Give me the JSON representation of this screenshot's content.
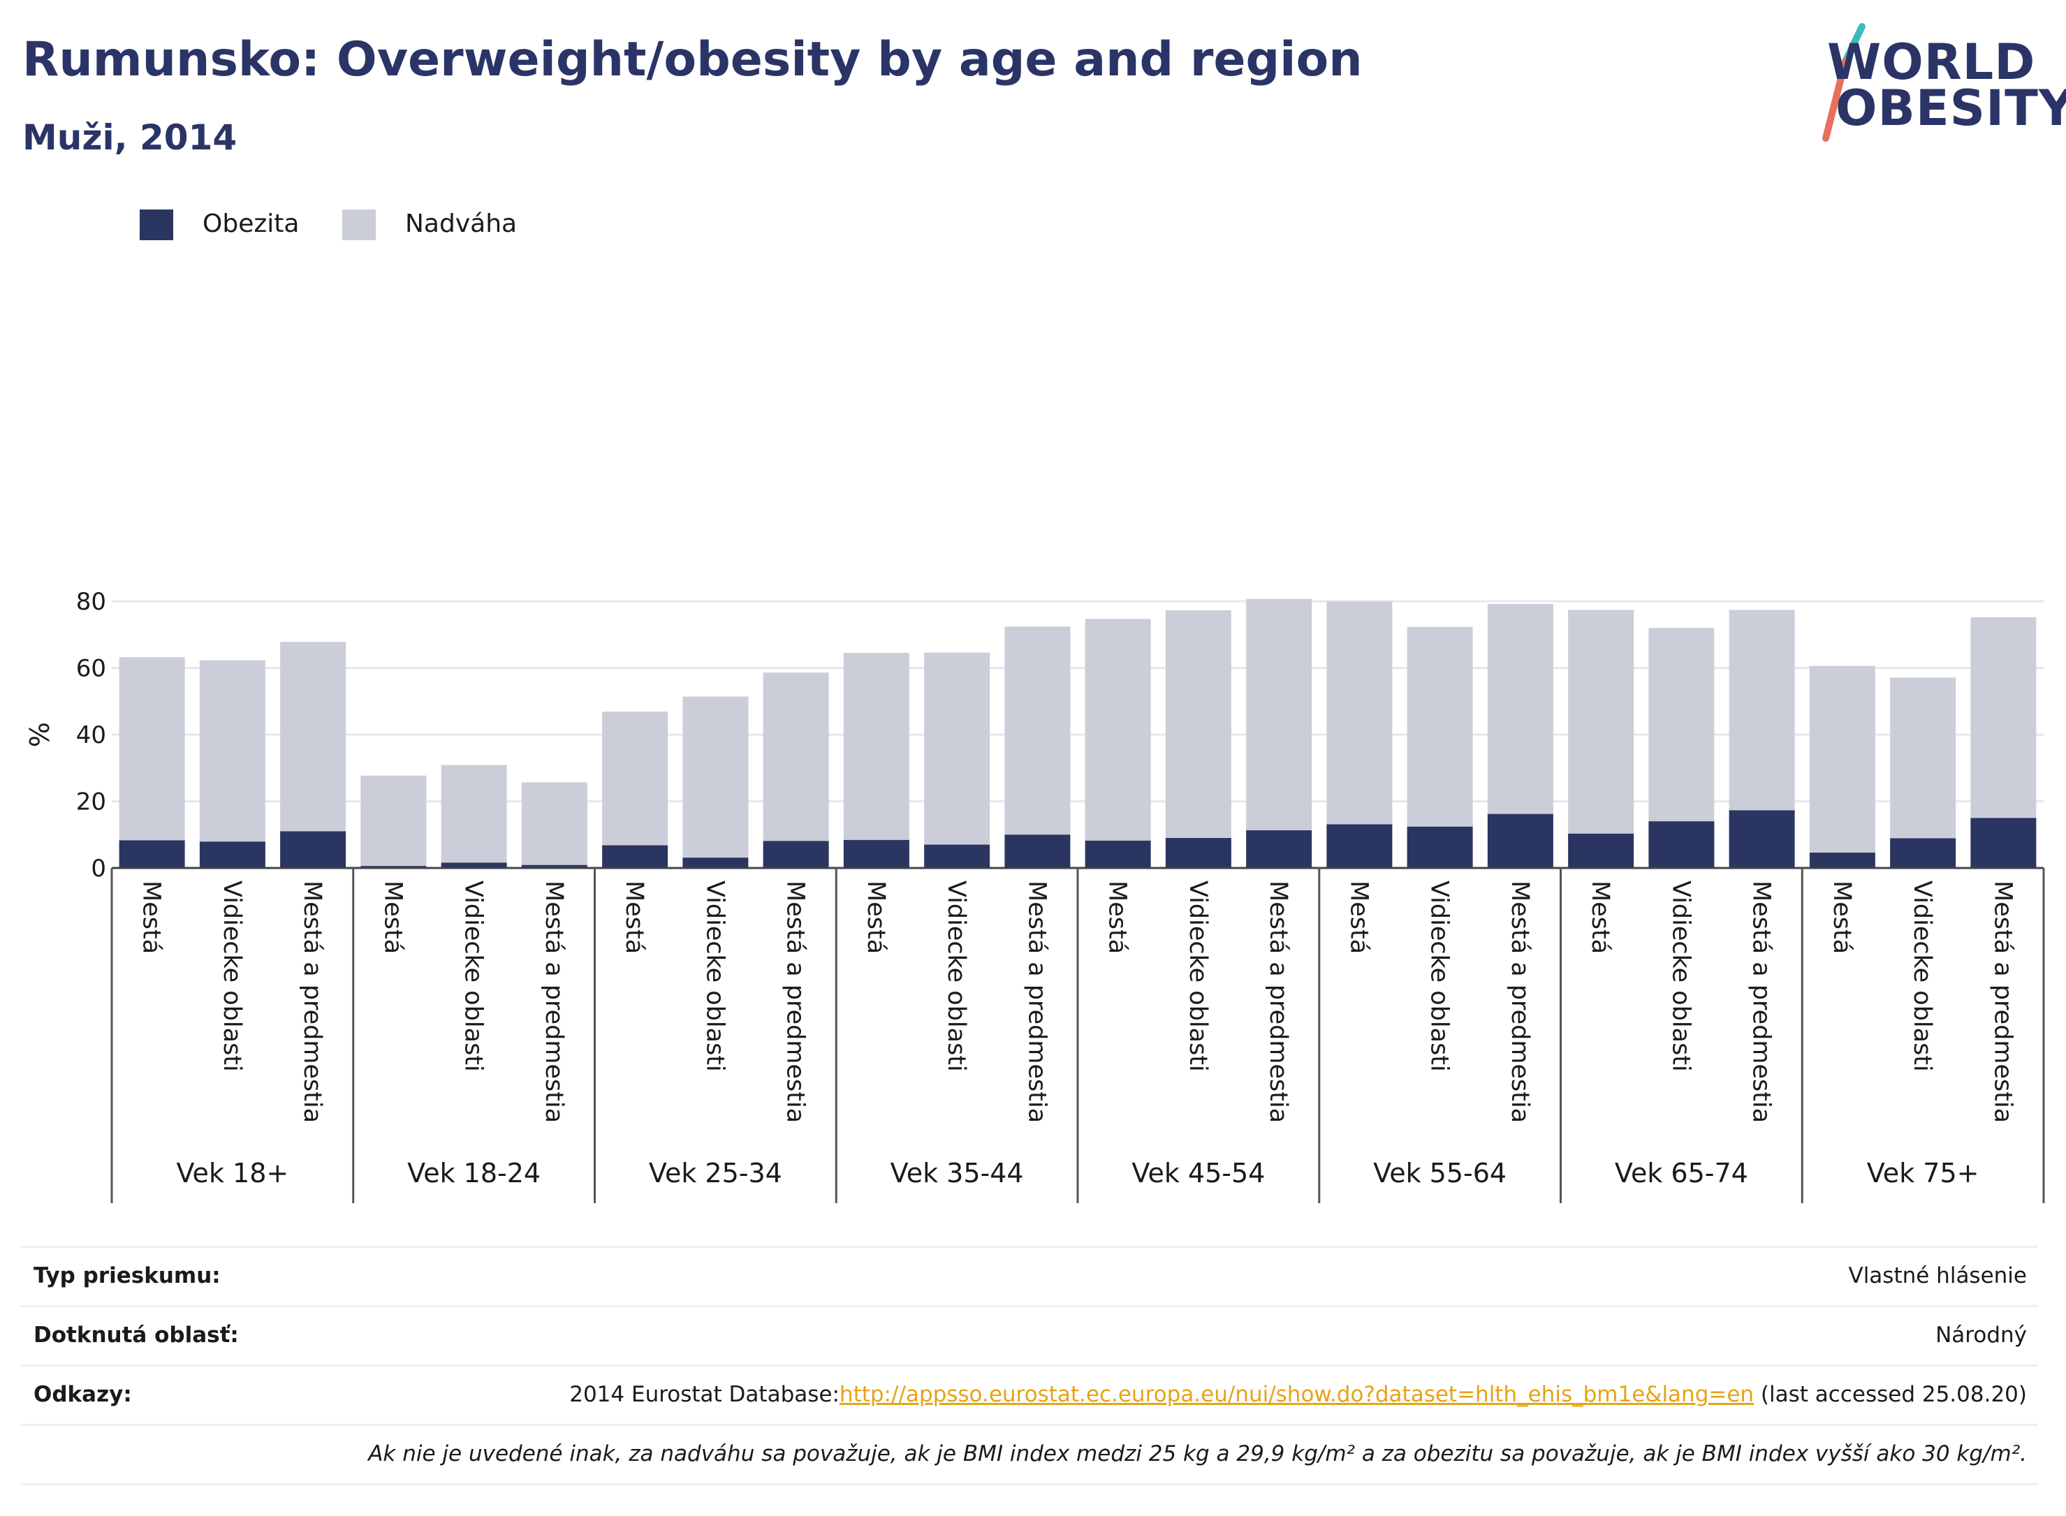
{
  "header": {
    "title": "Rumunsko: Overweight/obesity by age and region",
    "subtitle": "Muži, 2014"
  },
  "logo": {
    "line1": "WORLD",
    "line2": "OBESITY"
  },
  "colors": {
    "obesity": "#2a3561",
    "overweight": "#cbcdd9",
    "title": "#2b3467",
    "link": "#e6a316"
  },
  "chart_data": {
    "type": "bar",
    "stacked": true,
    "ylabel": "%",
    "ylim": [
      0,
      85
    ],
    "yticks": [
      0,
      20,
      40,
      60,
      80
    ],
    "grid": true,
    "legend_position": "top-left",
    "groups": [
      "Vek 18+",
      "Vek 18-24",
      "Vek 25-34",
      "Vek 35-44",
      "Vek 45-54",
      "Vek 55-64",
      "Vek 65-74",
      "Vek 75+"
    ],
    "subcategories": [
      "Mestá",
      "Vidiecke oblasti",
      "Mestá a predmestia"
    ],
    "series": [
      {
        "name": "Obezita",
        "values": [
          8.3,
          7.9,
          11.0,
          0.6,
          1.6,
          0.9,
          6.8,
          3.1,
          8.1,
          8.4,
          7.0,
          10.0,
          8.2,
          9.0,
          11.3,
          13.1,
          12.4,
          16.2,
          10.3,
          14.0,
          17.3,
          4.6,
          8.9,
          15.0
        ]
      },
      {
        "name": "Nadváha",
        "values": [
          54.9,
          54.4,
          56.8,
          27.1,
          29.3,
          24.8,
          40.1,
          48.3,
          50.5,
          56.1,
          57.6,
          62.4,
          66.5,
          68.3,
          69.4,
          66.8,
          59.9,
          63.0,
          67.1,
          58.0,
          60.1,
          56.0,
          48.2,
          60.2
        ]
      }
    ]
  },
  "footer": {
    "survey_type_label": "Typ prieskumu:",
    "survey_type_value": "Vlastné hlásenie",
    "area_label": "Dotknutá oblasť:",
    "area_value": "Národný",
    "refs_label": "Odkazy:",
    "refs_prefix": "2014 Eurostat Database:",
    "refs_link": "http://appsso.eurostat.ec.europa.eu/nui/show.do?dataset=hlth_ehis_bm1e&lang=en",
    "refs_suffix": " (last accessed 25.08.20)",
    "note": "Ak nie je uvedené inak, za nadváhu sa považuje, ak je BMI index medzi 25 kg a 29,9 kg/m² a za obezitu sa považuje, ak je BMI index vyšší ako 30 kg/m²."
  }
}
